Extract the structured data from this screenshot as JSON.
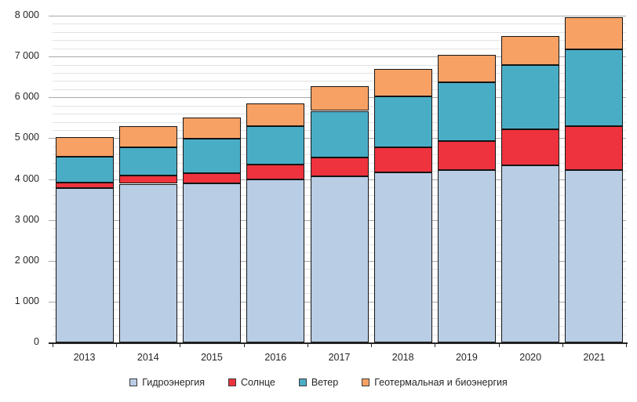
{
  "chart_data": {
    "type": "bar",
    "stacked": true,
    "title": "",
    "xlabel": "",
    "ylabel": "",
    "categories": [
      "2013",
      "2014",
      "2015",
      "2016",
      "2017",
      "2018",
      "2019",
      "2020",
      "2021"
    ],
    "series": [
      {
        "name": "Гидроэнергия",
        "color": "#B9CDE5",
        "values": [
          3780,
          3885,
          3890,
          3990,
          4070,
          4170,
          4220,
          4330,
          4230
        ]
      },
      {
        "name": "Солнце",
        "color": "#EE333E",
        "values": [
          140,
          205,
          260,
          360,
          450,
          610,
          710,
          880,
          1060
        ]
      },
      {
        "name": "Ветер",
        "color": "#4AADC6",
        "values": [
          620,
          685,
          840,
          940,
          1150,
          1250,
          1440,
          1580,
          1890
        ]
      },
      {
        "name": "Геотермальная и биоэнергия",
        "color": "#F8A165",
        "values": [
          490,
          530,
          520,
          560,
          600,
          660,
          680,
          710,
          790
        ]
      }
    ],
    "totals": [
      5030,
      5305,
      5510,
      5850,
      6270,
      6690,
      7050,
      7500,
      7970
    ],
    "ylim": [
      0,
      8000
    ],
    "y_major_step": 1000,
    "y_minor_step": 200,
    "y_tick_labels": [
      "0",
      "1 000",
      "2 000",
      "3 000",
      "4 000",
      "5 000",
      "6 000",
      "7 000",
      "8 000"
    ],
    "grid": true,
    "legend_position": "bottom",
    "colors": {
      "axis": "#262626",
      "major_gridline": "#a9a9a9",
      "minor_gridline": "#e2e2e2",
      "bar_border": "#141414",
      "text": "#262626"
    }
  }
}
